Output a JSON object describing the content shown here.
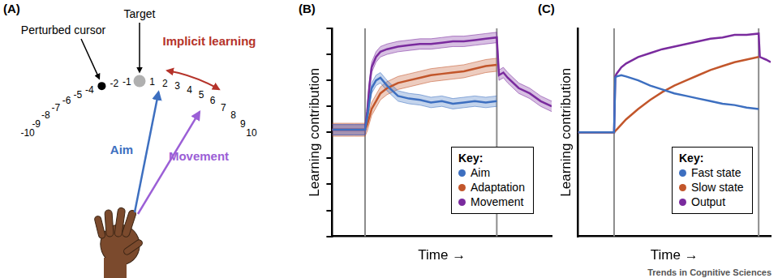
{
  "diagram": {
    "panel": "(A)",
    "scale": [
      -10,
      -9,
      -8,
      -7,
      -6,
      -5,
      -4,
      -2,
      -1,
      1,
      2,
      3,
      4,
      5,
      6,
      7,
      8,
      9,
      10
    ],
    "target": {
      "label": "Target",
      "position": 0
    },
    "cursor": {
      "label": "Perturbed cursor",
      "position": -3
    },
    "aim": {
      "label": "Aim",
      "position": 1.6
    },
    "movement": {
      "label": "Movement",
      "position": 5.5
    },
    "implicit_learning": {
      "label": "Implicit learning",
      "from": 2,
      "to": 6
    }
  },
  "credit": "Trends in Cognitive Sciences",
  "chart_data": [
    {
      "title": "(B)",
      "type": "line",
      "x_label": "Time →",
      "y_label": "Learning contribution",
      "x": [
        0,
        5,
        10,
        15,
        16,
        17,
        18,
        20,
        22,
        25,
        30,
        35,
        40,
        45,
        50,
        55,
        60,
        65,
        70,
        75,
        76,
        78,
        80,
        85,
        90,
        95,
        100
      ],
      "xlim": [
        0,
        100
      ],
      "ylim": [
        -4,
        4
      ],
      "yticks": [
        -4,
        -3,
        -2,
        -1,
        0,
        1,
        2,
        3,
        4
      ],
      "tick_labels": false,
      "grid": false,
      "legend": "lower right",
      "legend_title": "Key:",
      "vertical_lines": [
        15,
        75
      ],
      "series": [
        {
          "name": "Aim",
          "color": "#3d6fc0",
          "values": [
            0.1,
            0.1,
            0.1,
            0.1,
            0.6,
            1.2,
            1.7,
            2.0,
            2.1,
            1.8,
            1.4,
            1.3,
            1.25,
            1.15,
            1.2,
            1.1,
            1.15,
            1.2,
            1.15,
            1.2,
            null,
            null,
            null,
            null,
            null,
            null,
            null
          ],
          "error": [
            0.2,
            0.2,
            0.2,
            0.2,
            0.2,
            0.2,
            0.2,
            0.2,
            0.2,
            0.2,
            0.2,
            0.2,
            0.2,
            0.2,
            0.2,
            0.2,
            0.2,
            0.2,
            0.2,
            0.2,
            null,
            null,
            null,
            null,
            null,
            null,
            null
          ]
        },
        {
          "name": "Adaptation",
          "color": "#c2562b",
          "values": [
            0.1,
            0.1,
            0.1,
            0.1,
            0.3,
            0.6,
            0.9,
            1.2,
            1.5,
            1.7,
            1.9,
            2.0,
            2.1,
            2.2,
            2.25,
            2.3,
            2.35,
            2.45,
            2.55,
            2.6,
            null,
            null,
            null,
            null,
            null,
            null,
            null
          ],
          "error": [
            0.25,
            0.25,
            0.25,
            0.25,
            0.25,
            0.25,
            0.25,
            0.25,
            0.25,
            0.25,
            0.25,
            0.25,
            0.25,
            0.25,
            0.25,
            0.25,
            0.25,
            0.25,
            0.25,
            0.25,
            null,
            null,
            null,
            null,
            null,
            null,
            null
          ]
        },
        {
          "name": "Movement",
          "color": "#7a2b9e",
          "values": [
            0.1,
            0.1,
            0.1,
            0.1,
            0.8,
            1.8,
            2.5,
            2.9,
            3.1,
            3.2,
            3.3,
            3.35,
            3.4,
            3.4,
            3.45,
            3.5,
            3.5,
            3.55,
            3.6,
            3.65,
            2.2,
            2.3,
            2.1,
            1.7,
            1.5,
            1.2,
            1.0
          ],
          "error": [
            0.2,
            0.2,
            0.2,
            0.2,
            0.2,
            0.2,
            0.2,
            0.2,
            0.2,
            0.2,
            0.2,
            0.2,
            0.2,
            0.2,
            0.2,
            0.2,
            0.2,
            0.2,
            0.2,
            0.2,
            0.2,
            0.2,
            0.2,
            0.2,
            0.2,
            0.2,
            0.2
          ]
        }
      ]
    },
    {
      "title": "(C)",
      "type": "line",
      "x_label": "Time →",
      "y_label": "Learning contribution",
      "x": [
        0,
        5,
        10,
        15,
        15.5,
        16,
        18,
        20,
        25,
        30,
        35,
        40,
        45,
        50,
        55,
        60,
        65,
        70,
        75,
        75.5,
        78,
        80
      ],
      "xlim": [
        0,
        80
      ],
      "ylim": [
        -4,
        4
      ],
      "tick_labels": false,
      "grid": false,
      "legend": "lower right",
      "legend_title": "Key:",
      "vertical_lines": [
        15,
        75
      ],
      "series": [
        {
          "name": "Fast state",
          "color": "#3d6fc0",
          "values": [
            0,
            0,
            0,
            0,
            2.1,
            2.15,
            2.2,
            2.15,
            2.0,
            1.8,
            1.65,
            1.5,
            1.4,
            1.3,
            1.2,
            1.1,
            1.05,
            0.95,
            0.9,
            null,
            null,
            null
          ]
        },
        {
          "name": "Slow state",
          "color": "#c2562b",
          "values": [
            0,
            0,
            0,
            0,
            0.05,
            0.1,
            0.3,
            0.5,
            0.9,
            1.25,
            1.55,
            1.8,
            2.0,
            2.2,
            2.4,
            2.55,
            2.7,
            2.8,
            2.9,
            null,
            null,
            null
          ]
        },
        {
          "name": "Output",
          "color": "#7a2b9e",
          "values": [
            0,
            0,
            0,
            0,
            2.15,
            2.25,
            2.5,
            2.65,
            2.9,
            3.05,
            3.2,
            3.3,
            3.4,
            3.5,
            3.6,
            3.65,
            3.75,
            3.75,
            3.8,
            2.9,
            2.8,
            2.7
          ]
        }
      ]
    }
  ]
}
